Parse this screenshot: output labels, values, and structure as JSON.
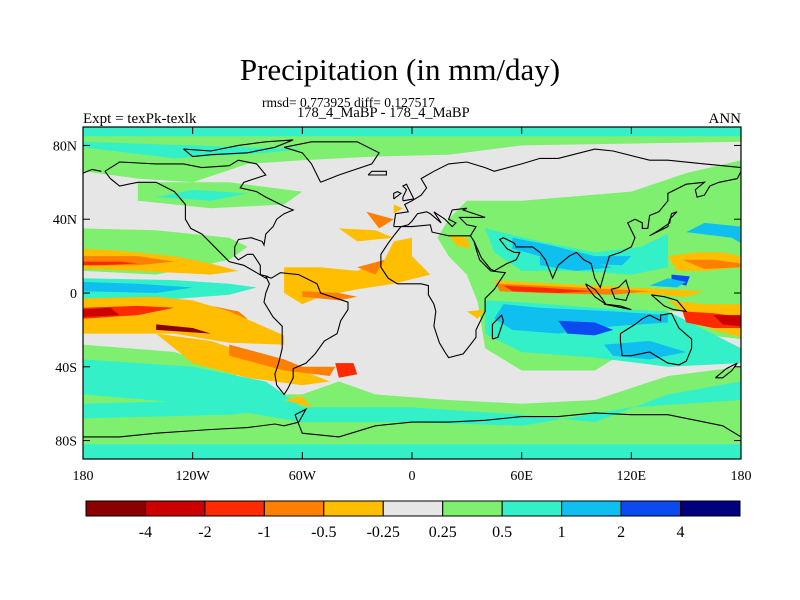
{
  "title": "Precipitation (in mm/day)",
  "stats": "rmsd= 0.773925 diff= 0.127517",
  "runs": "178_4_MaBP - 178_4_MaBP",
  "expt": "Expt = texPk-texlk",
  "season": "ANN",
  "map": {
    "lon_range": [
      -180,
      180
    ],
    "lat_range": [
      -90,
      90
    ],
    "lon_ticks": [
      {
        "value": -180,
        "label": "180"
      },
      {
        "value": -120,
        "label": "120W"
      },
      {
        "value": -60,
        "label": "60W"
      },
      {
        "value": 0,
        "label": "0"
      },
      {
        "value": 60,
        "label": "60E"
      },
      {
        "value": 120,
        "label": "120E"
      },
      {
        "value": 180,
        "label": "180"
      }
    ],
    "lat_ticks": [
      {
        "value": 80,
        "label": "80N"
      },
      {
        "value": 40,
        "label": "40N"
      },
      {
        "value": 0,
        "label": "0"
      },
      {
        "value": -40,
        "label": "40S"
      },
      {
        "value": -80,
        "label": "80S"
      }
    ]
  },
  "colorbar": {
    "colors": [
      "#8b0000",
      "#cc0000",
      "#ff2a00",
      "#ff7f00",
      "#ffbf00",
      "#e6e6e6",
      "#7fef6f",
      "#33f0c8",
      "#0fbff0",
      "#0a4af0",
      "#00007f"
    ],
    "labels": [
      "-4",
      "-2",
      "-1",
      "-0.5",
      "-0.25",
      "0.25",
      "0.5",
      "1",
      "2",
      "4"
    ]
  }
}
